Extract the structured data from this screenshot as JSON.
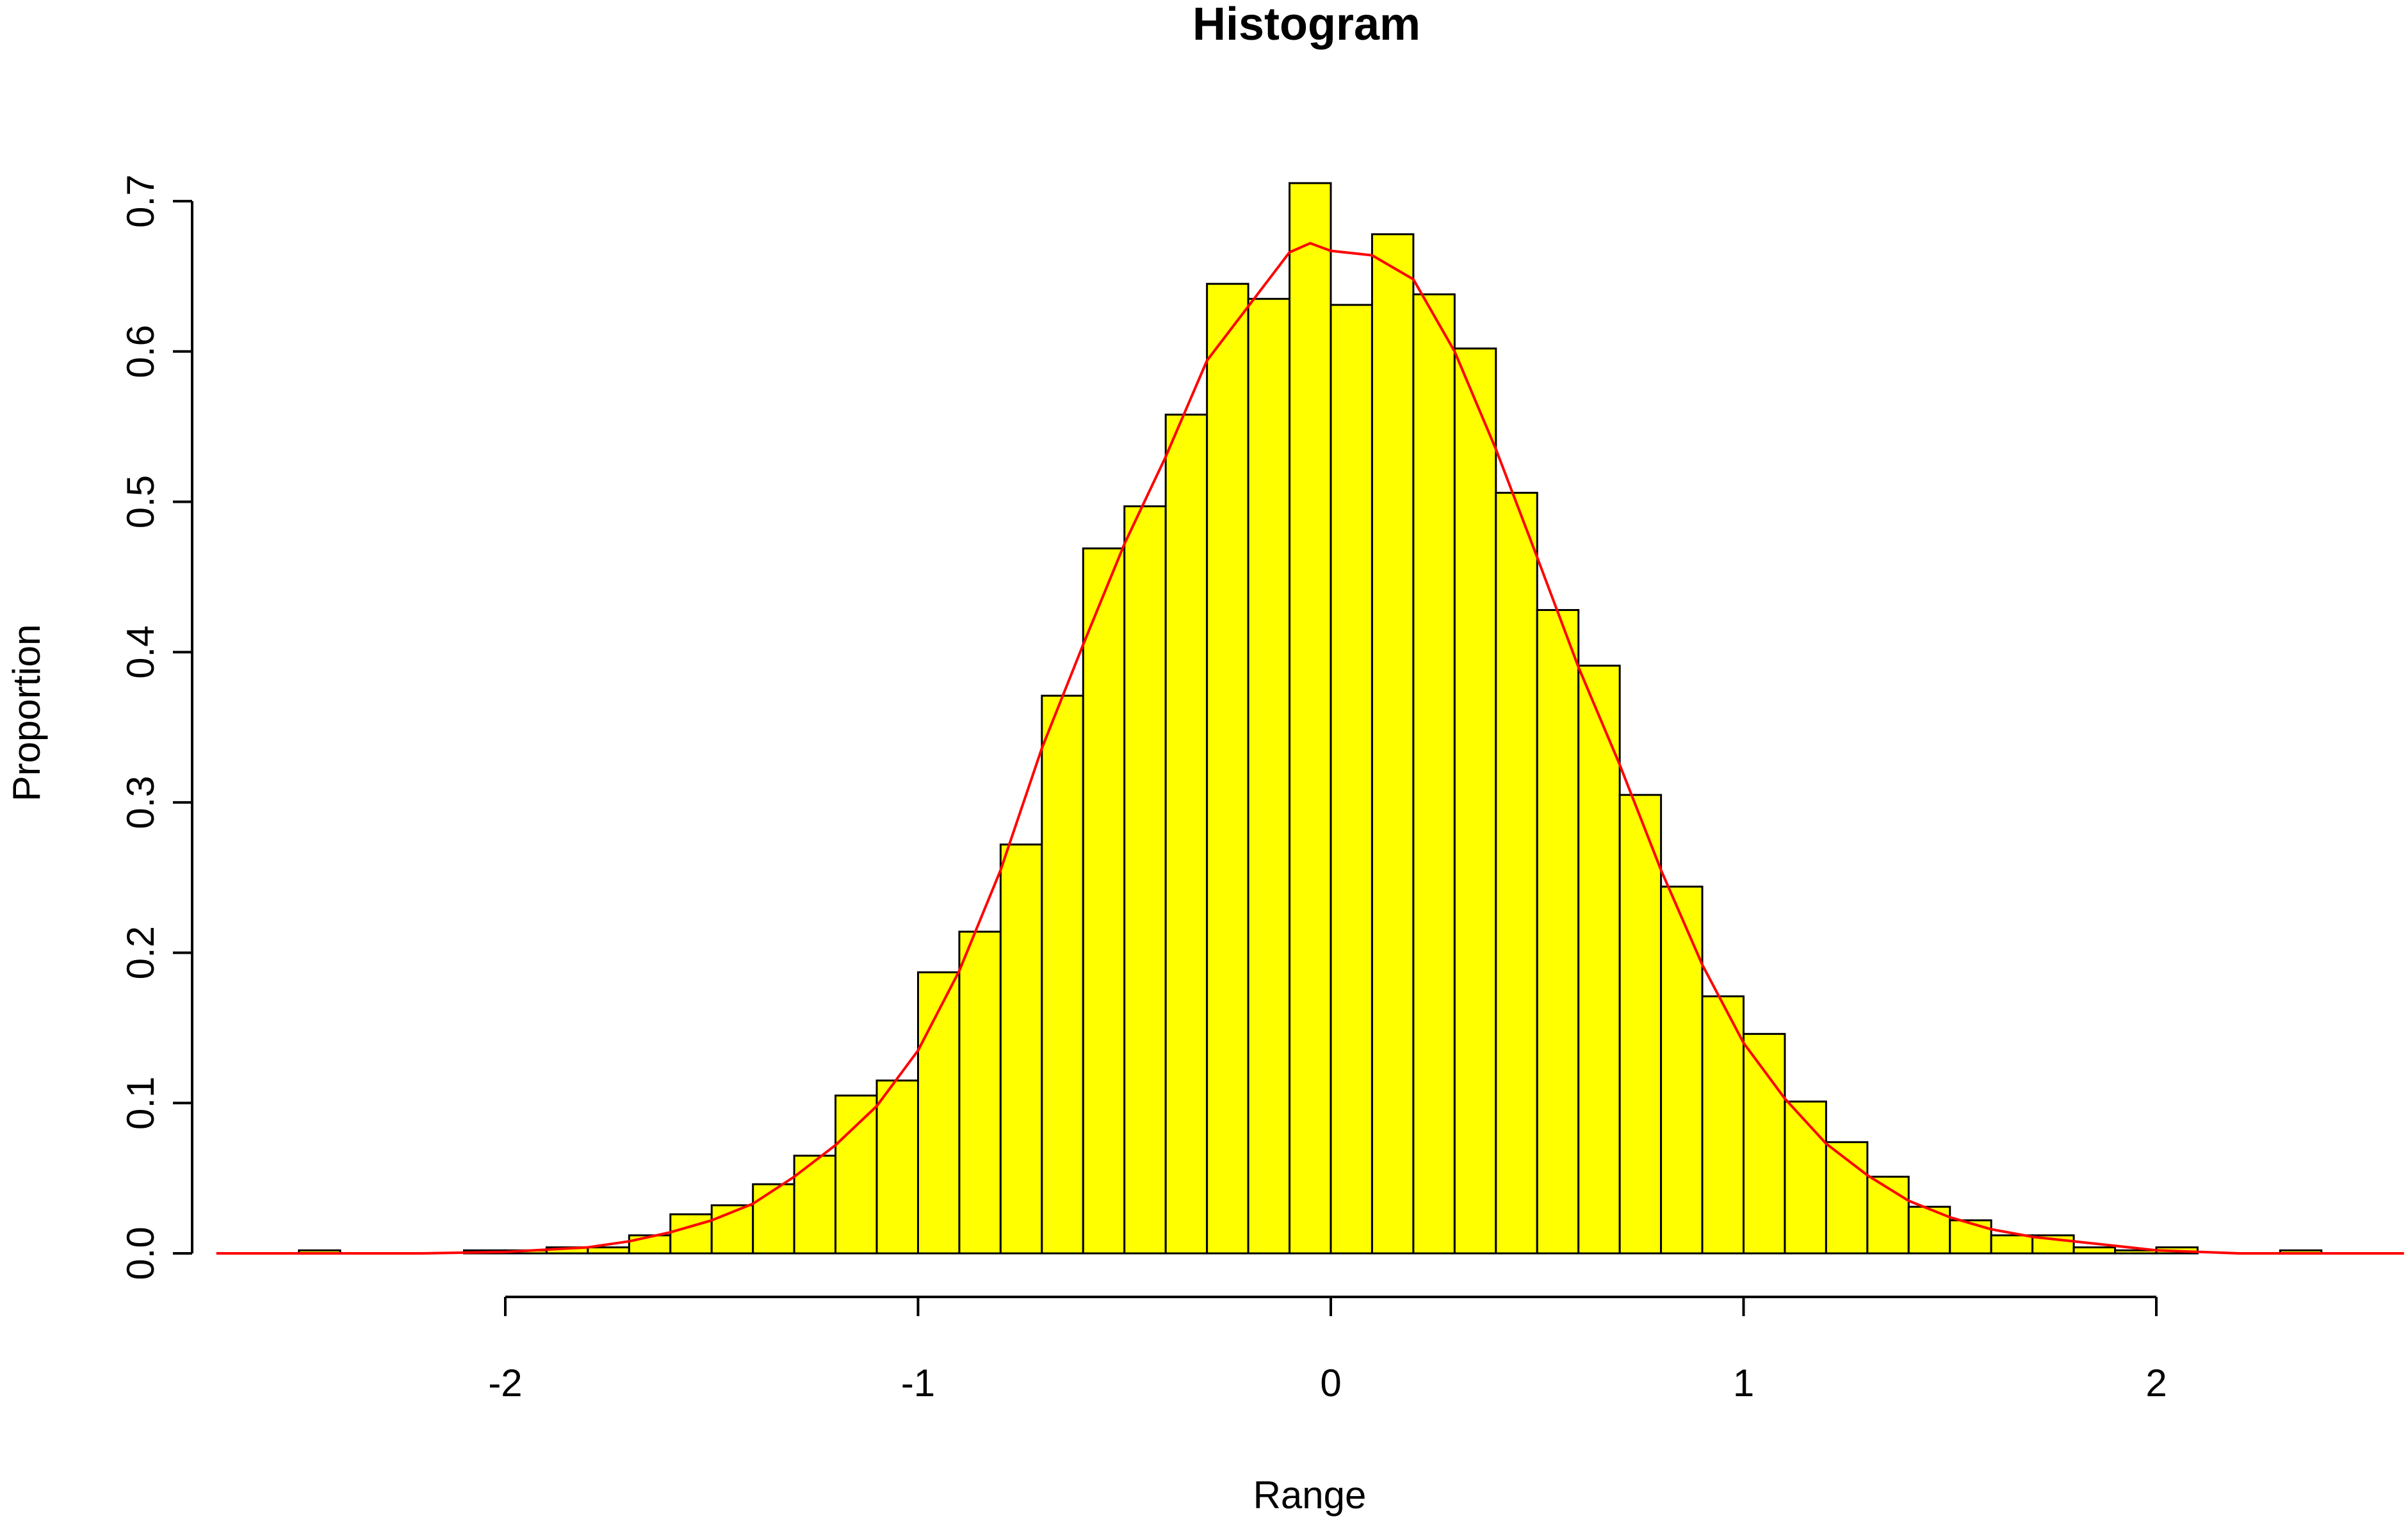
{
  "chart_data": {
    "type": "bar",
    "title": "Histogram",
    "xlabel": "Range",
    "ylabel": "Proportion",
    "xlim": [
      -2.5,
      2.6
    ],
    "ylim": [
      0,
      0.7
    ],
    "x_ticks": [
      -2,
      -1,
      0,
      1,
      2
    ],
    "x_tick_labels": [
      "-2",
      "-1",
      "0",
      "1",
      "2"
    ],
    "y_ticks": [
      0,
      0.1,
      0.2,
      0.3,
      0.4,
      0.5,
      0.6,
      0.7
    ],
    "y_tick_labels": [
      "0.0",
      "0.1",
      "0.2",
      "0.3",
      "0.4",
      "0.5",
      "0.6",
      "0.7"
    ],
    "grid": false,
    "bin_width": 0.1,
    "bars": [
      {
        "x0": -2.5,
        "x1": -2.4,
        "value": 0.002
      },
      {
        "x0": -2.4,
        "x1": -2.3,
        "value": 0
      },
      {
        "x0": -2.3,
        "x1": -2.2,
        "value": 0
      },
      {
        "x0": -2.2,
        "x1": -2.1,
        "value": 0
      },
      {
        "x0": -2.1,
        "x1": -2.0,
        "value": 0.002
      },
      {
        "x0": -2.0,
        "x1": -1.9,
        "value": 0.002
      },
      {
        "x0": -1.9,
        "x1": -1.8,
        "value": 0.004
      },
      {
        "x0": -1.8,
        "x1": -1.7,
        "value": 0.004
      },
      {
        "x0": -1.7,
        "x1": -1.6,
        "value": 0.012
      },
      {
        "x0": -1.6,
        "x1": -1.5,
        "value": 0.026
      },
      {
        "x0": -1.5,
        "x1": -1.4,
        "value": 0.032
      },
      {
        "x0": -1.4,
        "x1": -1.3,
        "value": 0.046
      },
      {
        "x0": -1.3,
        "x1": -1.2,
        "value": 0.065
      },
      {
        "x0": -1.2,
        "x1": -1.1,
        "value": 0.105
      },
      {
        "x0": -1.1,
        "x1": -1.0,
        "value": 0.115
      },
      {
        "x0": -1.0,
        "x1": -0.9,
        "value": 0.187
      },
      {
        "x0": -0.9,
        "x1": -0.8,
        "value": 0.214
      },
      {
        "x0": -0.8,
        "x1": -0.7,
        "value": 0.272
      },
      {
        "x0": -0.7,
        "x1": -0.6,
        "value": 0.371
      },
      {
        "x0": -0.6,
        "x1": -0.5,
        "value": 0.469
      },
      {
        "x0": -0.5,
        "x1": -0.4,
        "value": 0.497
      },
      {
        "x0": -0.4,
        "x1": -0.3,
        "value": 0.558
      },
      {
        "x0": -0.3,
        "x1": -0.2,
        "value": 0.645
      },
      {
        "x0": -0.2,
        "x1": -0.1,
        "value": 0.635
      },
      {
        "x0": -0.1,
        "x1": 0.0,
        "value": 0.712
      },
      {
        "x0": 0.0,
        "x1": 0.1,
        "value": 0.631
      },
      {
        "x0": 0.1,
        "x1": 0.2,
        "value": 0.678
      },
      {
        "x0": 0.2,
        "x1": 0.3,
        "value": 0.638
      },
      {
        "x0": 0.3,
        "x1": 0.4,
        "value": 0.602
      },
      {
        "x0": 0.4,
        "x1": 0.5,
        "value": 0.506
      },
      {
        "x0": 0.5,
        "x1": 0.6,
        "value": 0.428
      },
      {
        "x0": 0.6,
        "x1": 0.7,
        "value": 0.391
      },
      {
        "x0": 0.7,
        "x1": 0.8,
        "value": 0.305
      },
      {
        "x0": 0.8,
        "x1": 0.9,
        "value": 0.244
      },
      {
        "x0": 0.9,
        "x1": 1.0,
        "value": 0.171
      },
      {
        "x0": 1.0,
        "x1": 1.1,
        "value": 0.146
      },
      {
        "x0": 1.1,
        "x1": 1.2,
        "value": 0.101
      },
      {
        "x0": 1.2,
        "x1": 1.3,
        "value": 0.074
      },
      {
        "x0": 1.3,
        "x1": 1.4,
        "value": 0.051
      },
      {
        "x0": 1.4,
        "x1": 1.5,
        "value": 0.031
      },
      {
        "x0": 1.5,
        "x1": 1.6,
        "value": 0.022
      },
      {
        "x0": 1.6,
        "x1": 1.7,
        "value": 0.012
      },
      {
        "x0": 1.7,
        "x1": 1.8,
        "value": 0.012
      },
      {
        "x0": 1.8,
        "x1": 1.9,
        "value": 0.004
      },
      {
        "x0": 1.9,
        "x1": 2.0,
        "value": 0.002
      },
      {
        "x0": 2.0,
        "x1": 2.1,
        "value": 0.004
      },
      {
        "x0": 2.1,
        "x1": 2.2,
        "value": 0
      },
      {
        "x0": 2.2,
        "x1": 2.3,
        "value": 0
      },
      {
        "x0": 2.3,
        "x1": 2.4,
        "value": 0.002
      }
    ],
    "density_curve": {
      "x": [
        -2.7,
        -2.2,
        -2.0,
        -1.8,
        -1.7,
        -1.6,
        -1.5,
        -1.4,
        -1.3,
        -1.2,
        -1.1,
        -1.0,
        -0.9,
        -0.8,
        -0.7,
        -0.6,
        -0.5,
        -0.4,
        -0.3,
        -0.2,
        -0.1,
        -0.05,
        0.0,
        0.1,
        0.2,
        0.3,
        0.4,
        0.5,
        0.6,
        0.7,
        0.8,
        0.9,
        1.0,
        1.1,
        1.2,
        1.3,
        1.4,
        1.5,
        1.6,
        1.7,
        1.8,
        2.0,
        2.2,
        2.6
      ],
      "y": [
        0,
        0,
        0.001,
        0.004,
        0.008,
        0.014,
        0.022,
        0.033,
        0.051,
        0.072,
        0.098,
        0.135,
        0.188,
        0.255,
        0.336,
        0.405,
        0.472,
        0.53,
        0.594,
        0.63,
        0.666,
        0.672,
        0.667,
        0.664,
        0.648,
        0.6,
        0.535,
        0.463,
        0.39,
        0.325,
        0.255,
        0.192,
        0.14,
        0.103,
        0.073,
        0.052,
        0.035,
        0.024,
        0.016,
        0.011,
        0.008,
        0.002,
        0,
        0
      ]
    },
    "colors": {
      "bar_fill": "#ffff00",
      "bar_stroke": "#000000",
      "density": "#ff0000"
    }
  }
}
